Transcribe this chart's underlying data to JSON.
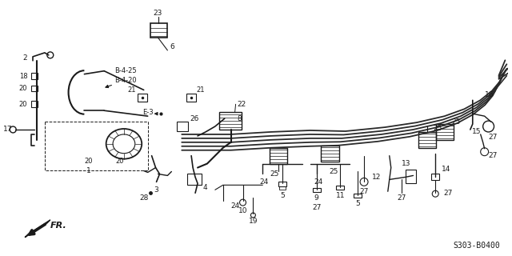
{
  "bg_color": "#ffffff",
  "line_color": "#1a1a1a",
  "fig_width": 6.4,
  "fig_height": 3.2,
  "dpi": 100,
  "diagram_code": "S303-B0400",
  "pipe_color": "#2a2a2a",
  "gray": "#888888"
}
